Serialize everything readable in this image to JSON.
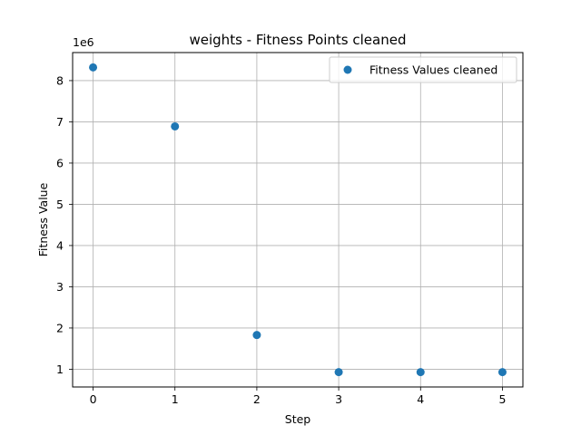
{
  "chart_data": {
    "type": "scatter",
    "title": "weights - Fitness Points cleaned",
    "xlabel": "Step",
    "ylabel": "Fitness Value",
    "y_offset_label": "1e6",
    "xlim": [
      -0.25,
      5.25
    ],
    "ylim": [
      0.57,
      8.68
    ],
    "x_ticks": [
      0,
      1,
      2,
      3,
      4,
      5
    ],
    "y_ticks": [
      1,
      2,
      3,
      4,
      5,
      6,
      7,
      8
    ],
    "grid": true,
    "legend_position": "top-right",
    "series": [
      {
        "name": "Fitness Values cleaned",
        "color": "#1f77b4",
        "x": [
          0,
          1,
          2,
          3,
          4,
          5
        ],
        "y": [
          8.32,
          6.89,
          1.83,
          0.93,
          0.93,
          0.93
        ]
      }
    ]
  }
}
